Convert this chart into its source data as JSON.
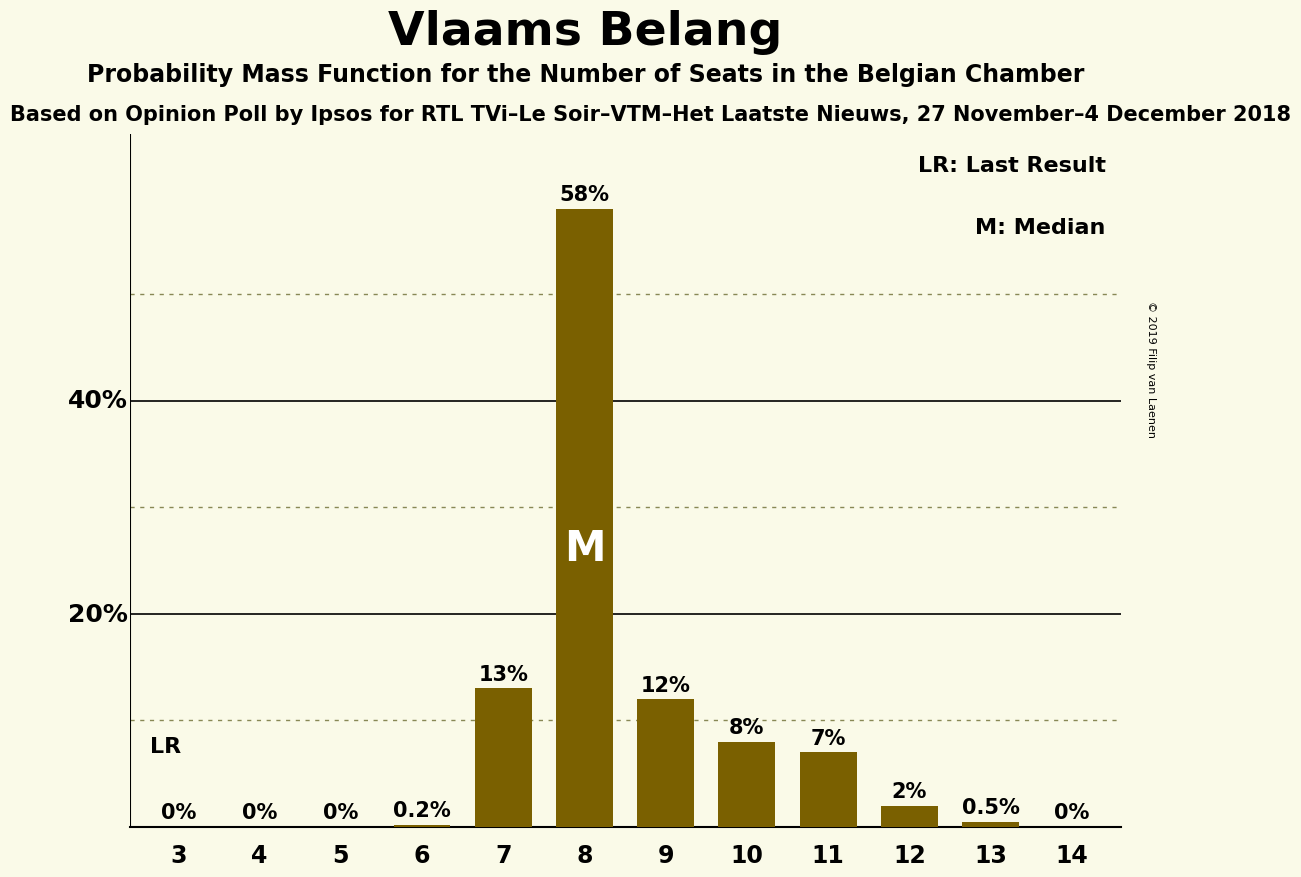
{
  "title": "Vlaams Belang",
  "subtitle": "Probability Mass Function for the Number of Seats in the Belgian Chamber",
  "sub2": "Based on Opinion Poll by Ipsos for RTL TVi–Le Soir–VTM–Het Laatste Nieuws, 27 November–4 December 2018",
  "background_color": "#FAFAE8",
  "bar_color": "#7A6000",
  "categories": [
    3,
    4,
    5,
    6,
    7,
    8,
    9,
    10,
    11,
    12,
    13,
    14
  ],
  "values": [
    0.0,
    0.0,
    0.0,
    0.2,
    13.0,
    58.0,
    12.0,
    8.0,
    7.0,
    2.0,
    0.5,
    0.0
  ],
  "labels": [
    "0%",
    "0%",
    "0%",
    "0.2%",
    "13%",
    "58%",
    "12%",
    "8%",
    "7%",
    "2%",
    "0.5%",
    "0%"
  ],
  "ylim": [
    0,
    65
  ],
  "solid_grid_lines": [
    20,
    40
  ],
  "dotted_grid_lines": [
    10,
    30,
    50
  ],
  "median_bar": 8,
  "lr_bar": 7,
  "lr_label": "LR",
  "median_label": "M",
  "legend_lr": "LR: Last Result",
  "legend_m": "M: Median",
  "copyright": "© 2019 Filip van Laenen",
  "title_fontsize": 34,
  "subtitle_fontsize": 17,
  "sub2_fontsize": 15,
  "bar_label_fontsize": 15,
  "legend_fontsize": 16,
  "ylabel_fontsize": 18,
  "xtick_fontsize": 17,
  "lr_fontsize": 16
}
